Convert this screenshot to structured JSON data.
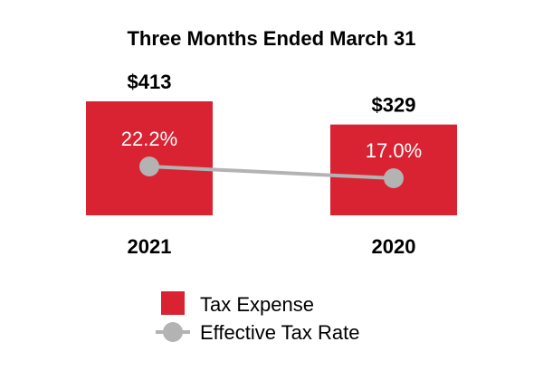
{
  "chart_data": {
    "type": "bar",
    "title": "Three Months Ended March 31",
    "categories": [
      "2021",
      "2020"
    ],
    "series": [
      {
        "name": "Tax Expense",
        "type": "bar",
        "values": [
          413,
          329
        ],
        "labels": [
          "$413",
          "$329"
        ],
        "color": "#d92232"
      },
      {
        "name": "Effective Tax Rate",
        "type": "line",
        "values": [
          22.2,
          17.0
        ],
        "labels": [
          "22.2%",
          "17.0%"
        ],
        "color": "#b3b3b3"
      }
    ],
    "legend": "bottom-center",
    "grid": false
  }
}
